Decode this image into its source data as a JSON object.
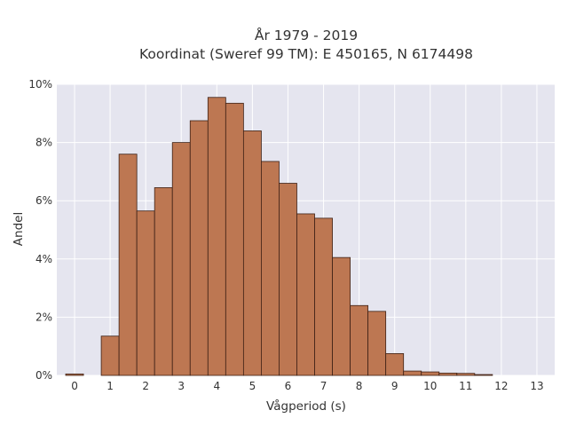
{
  "chart_data": {
    "type": "bar",
    "title": "År 1979 - 2019",
    "subtitle": "Koordinat (Sweref 99 TM): E 450165, N 6174498",
    "xlabel": "Vågperiod (s)",
    "ylabel": "Andel",
    "bin_width": 0.5,
    "xlim": [
      -0.5,
      13.5
    ],
    "ylim": [
      0,
      10
    ],
    "x_ticks": [
      0,
      1,
      2,
      3,
      4,
      5,
      6,
      7,
      8,
      9,
      10,
      11,
      12,
      13
    ],
    "y_ticks": [
      0,
      2,
      4,
      6,
      8,
      10
    ],
    "y_tick_suffix": "%",
    "grid": true,
    "bar_color": "#bd7752",
    "bar_edge_color": "#3d2015",
    "background_color": "#e5e5ef",
    "bins": [
      {
        "x": 0.0,
        "value": 0.05
      },
      {
        "x": 0.5,
        "value": 0.0
      },
      {
        "x": 1.0,
        "value": 1.35
      },
      {
        "x": 1.5,
        "value": 7.6
      },
      {
        "x": 2.0,
        "value": 5.65
      },
      {
        "x": 2.5,
        "value": 6.45
      },
      {
        "x": 3.0,
        "value": 8.0
      },
      {
        "x": 3.5,
        "value": 8.75
      },
      {
        "x": 4.0,
        "value": 9.55
      },
      {
        "x": 4.5,
        "value": 9.35
      },
      {
        "x": 5.0,
        "value": 8.4
      },
      {
        "x": 5.5,
        "value": 7.35
      },
      {
        "x": 6.0,
        "value": 6.6
      },
      {
        "x": 6.5,
        "value": 5.55
      },
      {
        "x": 7.0,
        "value": 5.4
      },
      {
        "x": 7.5,
        "value": 4.05
      },
      {
        "x": 8.0,
        "value": 2.4
      },
      {
        "x": 8.5,
        "value": 2.2
      },
      {
        "x": 9.0,
        "value": 0.75
      },
      {
        "x": 9.5,
        "value": 0.15
      },
      {
        "x": 10.0,
        "value": 0.12
      },
      {
        "x": 10.5,
        "value": 0.08
      },
      {
        "x": 11.0,
        "value": 0.07
      },
      {
        "x": 11.5,
        "value": 0.03
      }
    ]
  }
}
